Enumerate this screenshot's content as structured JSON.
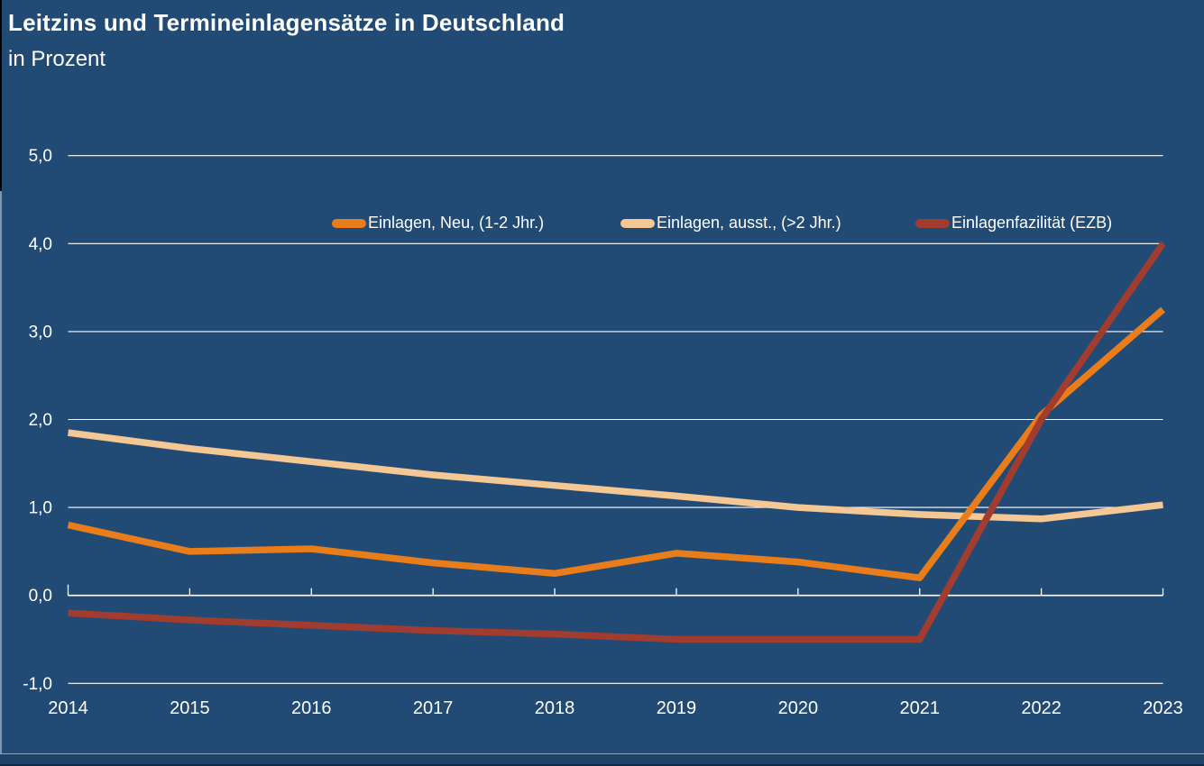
{
  "chart_data": {
    "type": "line",
    "title": "Leitzins und Termineinlagensätze in Deutschland",
    "subtitle": "in Prozent",
    "categories": [
      "2014",
      "2015",
      "2016",
      "2017",
      "2018",
      "2019",
      "2020",
      "2021",
      "2022",
      "2023"
    ],
    "series": [
      {
        "name": "Einlagen, Neu, (1-2 Jhr.)",
        "color": "#E97D1A",
        "values": [
          0.8,
          0.5,
          0.53,
          0.37,
          0.25,
          0.48,
          0.38,
          0.2,
          2.05,
          3.25
        ]
      },
      {
        "name": "Einlagen, ausst., (>2 Jhr.)",
        "color": "#F5C795",
        "values": [
          1.85,
          1.67,
          1.52,
          1.37,
          1.25,
          1.13,
          1.0,
          0.92,
          0.87,
          1.03
        ]
      },
      {
        "name": "Einlagenfazilität (EZB)",
        "color": "#A23C2E",
        "values": [
          -0.2,
          -0.28,
          -0.34,
          -0.4,
          -0.44,
          -0.5,
          -0.5,
          -0.5,
          2.0,
          4.0
        ]
      }
    ],
    "ylim": [
      -1,
      5
    ],
    "yticks": [
      {
        "label": "5,0",
        "value": 5
      },
      {
        "label": "4,0",
        "value": 4
      },
      {
        "label": "3,0",
        "value": 3
      },
      {
        "label": "2,0",
        "value": 2
      },
      {
        "label": "1,0",
        "value": 1
      },
      {
        "label": "0,0",
        "value": 0
      },
      {
        "label": "-1,0",
        "value": -1
      }
    ],
    "grid": "horizontal-white",
    "legend_position": "top-inside",
    "axis_color": "#FFFFFF",
    "background_color": "#214B75"
  }
}
